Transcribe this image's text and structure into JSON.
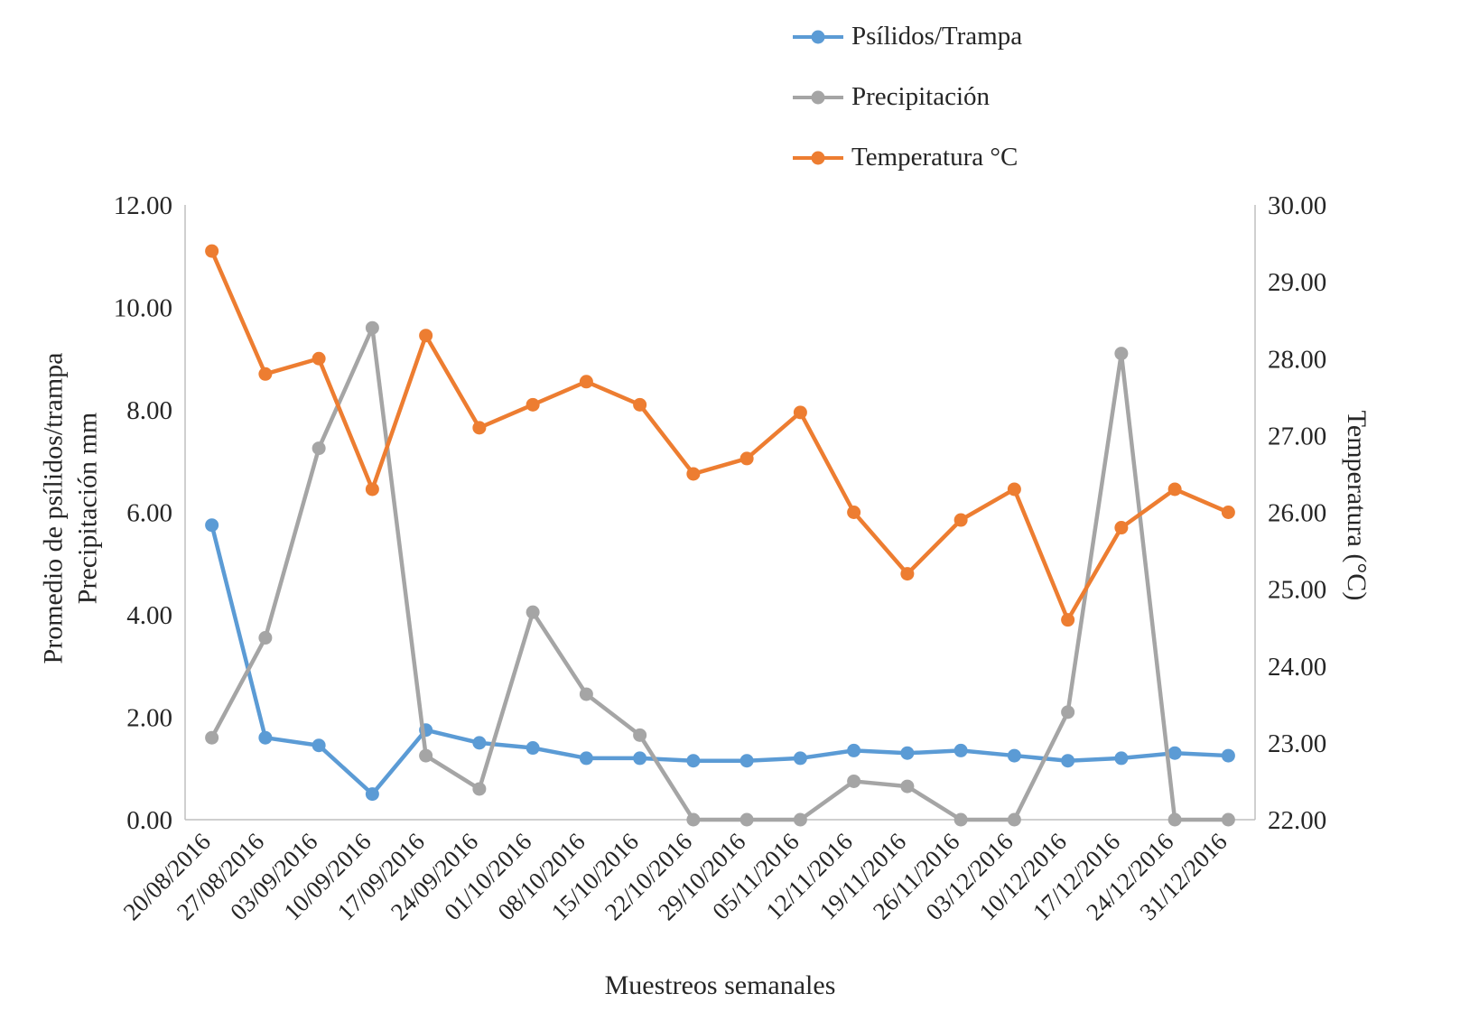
{
  "chart_data": {
    "type": "line",
    "title": "",
    "xlabel": "Muestreos semanales",
    "ylabel_left_line1": "Promedio de psílidos/trampa",
    "ylabel_left_line2": "Precipitación mm",
    "ylabel_right": "Temperatura (°C)",
    "legend_position": "top",
    "grid": false,
    "text_color": "#262626",
    "axis_color": "#BFBFBF",
    "categories": [
      "20/08/2016",
      "27/08/2016",
      "03/09/2016",
      "10/09/2016",
      "17/09/2016",
      "24/09/2016",
      "01/10/2016",
      "08/10/2016",
      "15/10/2016",
      "22/10/2016",
      "29/10/2016",
      "05/11/2016",
      "12/11/2016",
      "19/11/2016",
      "26/11/2016",
      "03/12/2016",
      "10/12/2016",
      "17/12/2016",
      "24/12/2016",
      "31/12/2016"
    ],
    "left_axis": {
      "min": 0,
      "max": 12,
      "tick_values": [
        0,
        2,
        4,
        6,
        8,
        10,
        12
      ],
      "tick_labels": [
        "0.00",
        "2.00",
        "4.00",
        "6.00",
        "8.00",
        "10.00",
        "12.00"
      ]
    },
    "right_axis": {
      "min": 22,
      "max": 30,
      "tick_values": [
        22,
        23,
        24,
        25,
        26,
        27,
        28,
        29,
        30
      ],
      "tick_labels": [
        "22.00",
        "23.00",
        "24.00",
        "25.00",
        "26.00",
        "27.00",
        "28.00",
        "29.00",
        "30.00"
      ]
    },
    "series": [
      {
        "name": "Psílidos/Trampa",
        "axis": "left",
        "color": "#5B9BD5",
        "marker": "circle",
        "values": [
          5.75,
          1.6,
          1.45,
          0.5,
          1.75,
          1.5,
          1.4,
          1.2,
          1.2,
          1.15,
          1.15,
          1.2,
          1.35,
          1.3,
          1.35,
          1.25,
          1.15,
          1.2,
          1.3,
          1.25
        ]
      },
      {
        "name": "Precipitación",
        "axis": "left",
        "color": "#A5A5A5",
        "marker": "circle",
        "values": [
          1.6,
          3.55,
          7.25,
          9.6,
          1.25,
          0.6,
          4.05,
          2.45,
          1.65,
          0,
          0,
          0,
          0.75,
          0.65,
          0,
          0,
          2.1,
          9.1,
          0,
          0
        ]
      },
      {
        "name": "Temperatura °C",
        "axis": "right",
        "color": "#ED7D31",
        "marker": "circle",
        "values": [
          29.4,
          27.8,
          28.0,
          26.3,
          28.3,
          27.1,
          27.4,
          27.7,
          27.4,
          26.5,
          26.7,
          27.3,
          26.0,
          25.2,
          25.9,
          26.3,
          24.6,
          25.8,
          26.3,
          26.0
        ]
      }
    ]
  }
}
